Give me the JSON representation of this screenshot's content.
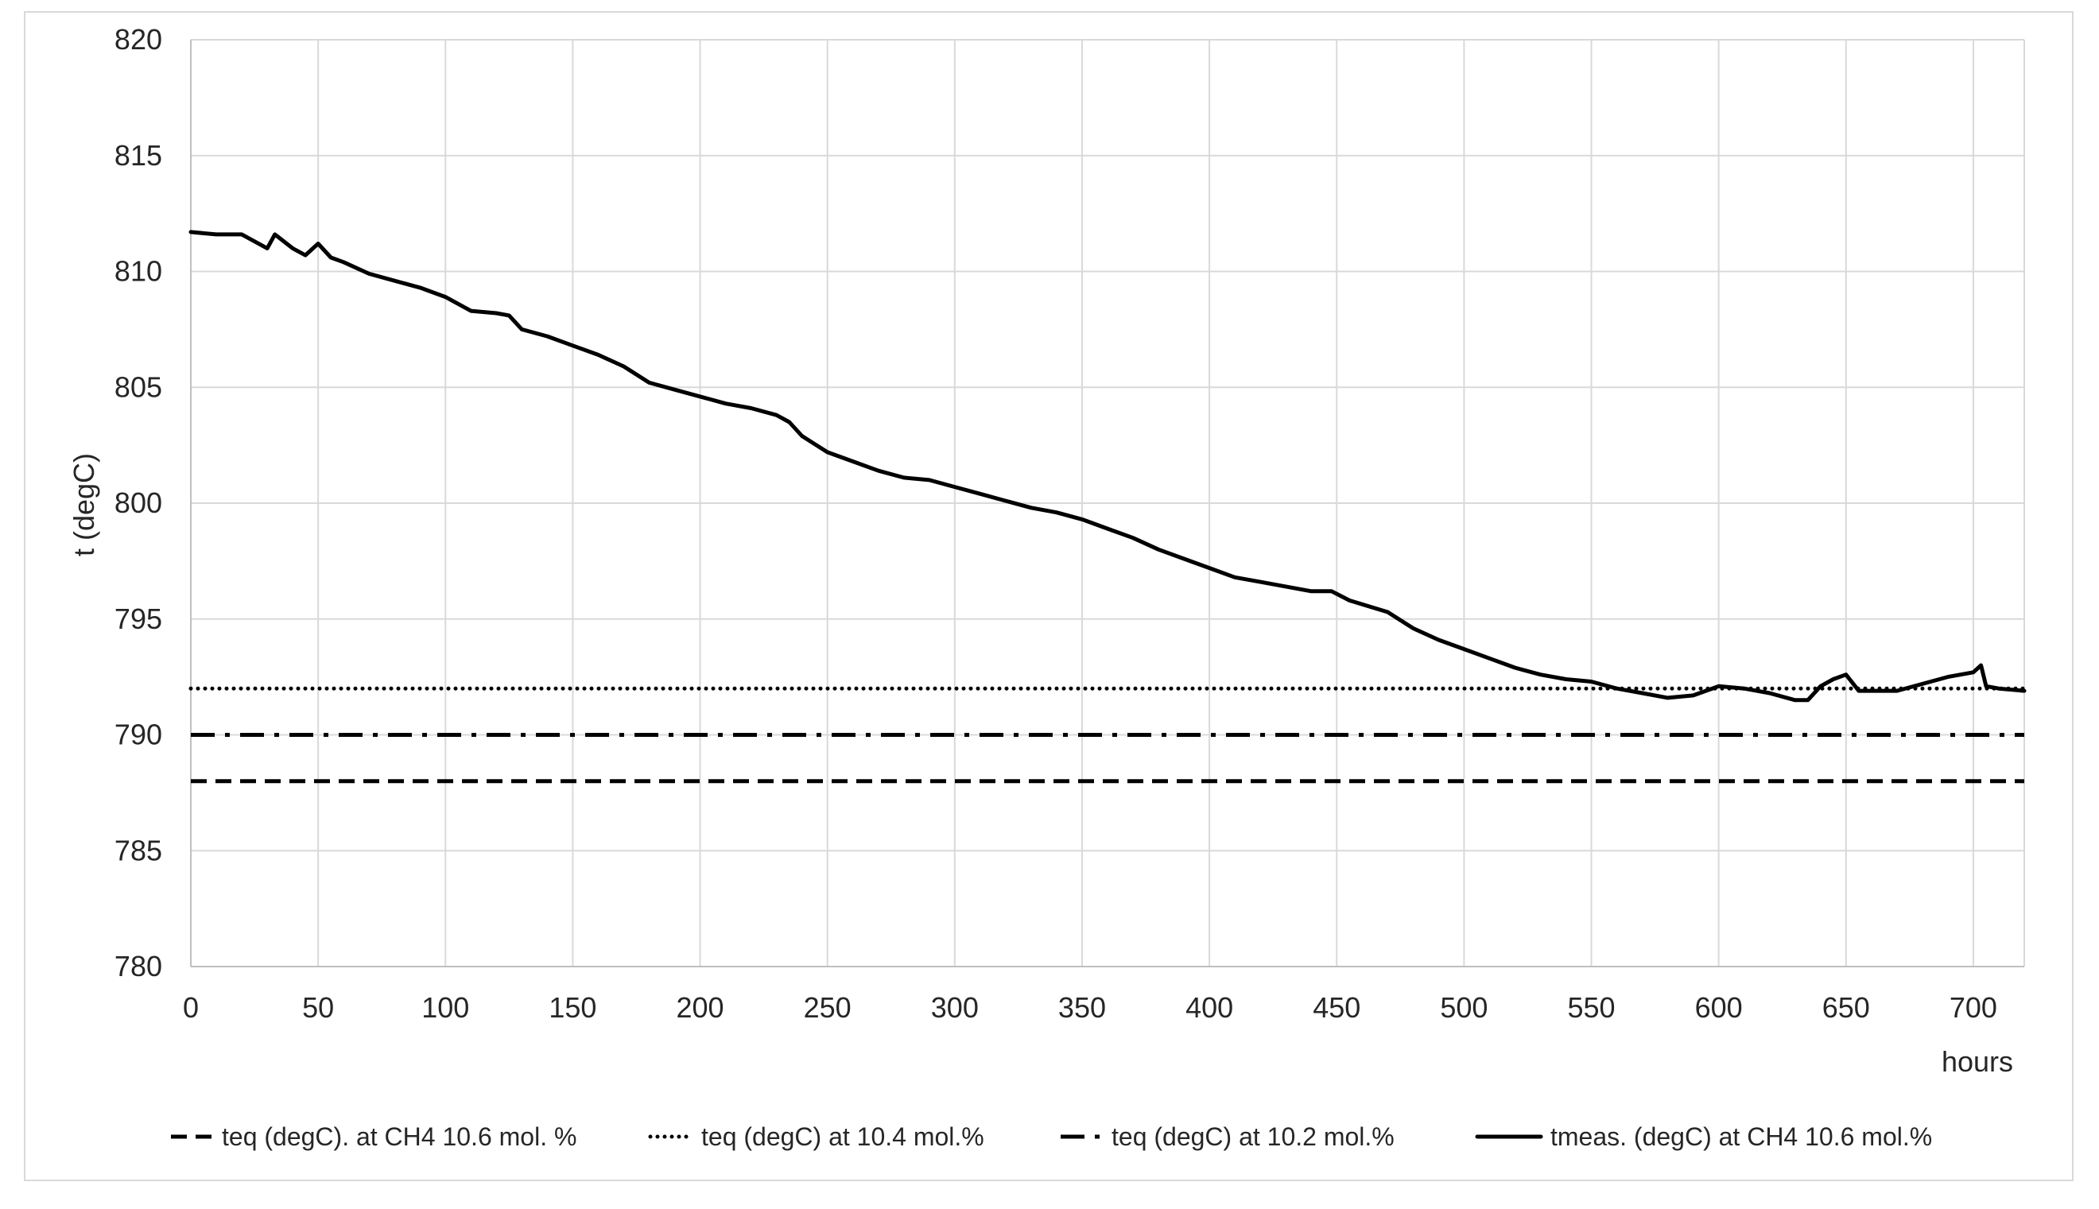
{
  "chart_data": {
    "type": "line",
    "title": "",
    "xlabel": "hours",
    "ylabel": "t (degC)",
    "xlim": [
      0,
      720
    ],
    "ylim": [
      780,
      820
    ],
    "xticks": [
      0,
      50,
      100,
      150,
      200,
      250,
      300,
      350,
      400,
      450,
      500,
      550,
      600,
      650,
      700
    ],
    "yticks": [
      780,
      785,
      790,
      795,
      800,
      805,
      810,
      815,
      820
    ],
    "grid": true,
    "legend_position": "bottom",
    "series": [
      {
        "name": "teq (degC). at CH4 10.6 mol. %",
        "style": "dashed",
        "color": "#000000",
        "x": [
          0,
          720
        ],
        "y": [
          788,
          788
        ]
      },
      {
        "name": "teq (degC) at 10.4 mol.%",
        "style": "dotted",
        "color": "#000000",
        "x": [
          0,
          720
        ],
        "y": [
          792,
          792
        ]
      },
      {
        "name": "teq (degC) at 10.2 mol.%",
        "style": "dash-dot",
        "color": "#000000",
        "x": [
          0,
          720
        ],
        "y": [
          790,
          790
        ]
      },
      {
        "name": "tmeas. (degC) at CH4 10.6 mol.%",
        "style": "solid",
        "color": "#000000",
        "x": [
          0,
          10,
          20,
          30,
          33,
          40,
          45,
          50,
          55,
          60,
          70,
          80,
          90,
          100,
          110,
          120,
          125,
          130,
          140,
          150,
          160,
          170,
          180,
          190,
          200,
          210,
          220,
          230,
          235,
          240,
          250,
          260,
          270,
          280,
          290,
          300,
          310,
          320,
          330,
          340,
          350,
          360,
          370,
          380,
          390,
          400,
          410,
          420,
          430,
          440,
          448,
          455,
          470,
          480,
          490,
          500,
          510,
          520,
          530,
          540,
          550,
          560,
          570,
          580,
          590,
          600,
          610,
          620,
          630,
          635,
          640,
          645,
          650,
          655,
          670,
          680,
          690,
          700,
          703,
          705,
          710,
          720
        ],
        "y": [
          811.7,
          811.6,
          811.6,
          811.0,
          811.6,
          811.0,
          810.7,
          811.2,
          810.6,
          810.4,
          809.9,
          809.6,
          809.3,
          808.9,
          808.3,
          808.2,
          808.1,
          807.5,
          807.2,
          806.8,
          806.4,
          805.9,
          805.2,
          804.9,
          804.6,
          804.3,
          804.1,
          803.8,
          803.5,
          802.9,
          802.2,
          801.8,
          801.4,
          801.1,
          801.0,
          800.7,
          800.4,
          800.1,
          799.8,
          799.6,
          799.3,
          798.9,
          798.5,
          798.0,
          797.6,
          797.2,
          796.8,
          796.6,
          796.4,
          796.2,
          796.2,
          795.8,
          795.3,
          794.6,
          794.1,
          793.7,
          793.3,
          792.9,
          792.6,
          792.4,
          792.3,
          792.0,
          791.8,
          791.6,
          791.7,
          792.1,
          792.0,
          791.8,
          791.5,
          791.5,
          792.1,
          792.4,
          792.6,
          791.9,
          791.9,
          792.2,
          792.5,
          792.7,
          793.0,
          792.1,
          792.0,
          791.9
        ]
      }
    ]
  }
}
